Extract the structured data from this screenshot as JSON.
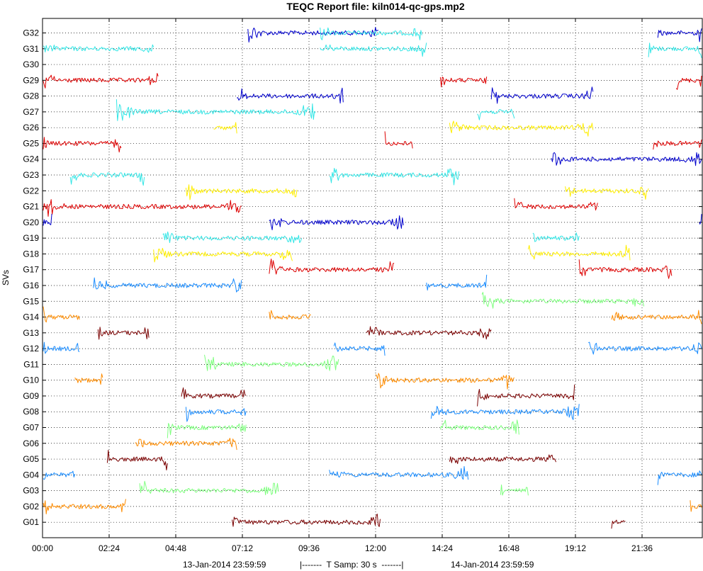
{
  "chart_data": {
    "type": "line",
    "title": "TEQC Report file: kiln014-qc-gps.mp2",
    "ylabel": "SVs",
    "xlabel": "",
    "grid": true,
    "x_ticks": [
      "00:00",
      "02:24",
      "04:48",
      "07:12",
      "09:36",
      "12:00",
      "14:24",
      "16:48",
      "19:12",
      "21:36"
    ],
    "y_ticks": [
      "G01",
      "G02",
      "G03",
      "G04",
      "G05",
      "G06",
      "G07",
      "G08",
      "G09",
      "G10",
      "G11",
      "G12",
      "G13",
      "G14",
      "G15",
      "G16",
      "G17",
      "G18",
      "G19",
      "G20",
      "G21",
      "G22",
      "G23",
      "G24",
      "G25",
      "G26",
      "G27",
      "G28",
      "G29",
      "G30",
      "G31",
      "G32"
    ],
    "xlim": [
      "00:00",
      "24:00"
    ],
    "footer": {
      "start": "13-Jan-2014 23:59:59",
      "sampling": "|-------  T Samp: 30 s  -------|",
      "end": "14-Jan-2014 23:59:59"
    },
    "series": [
      {
        "sv": "G32",
        "color": "#0000cc",
        "segments": [
          [
            "07:24",
            "12:06"
          ],
          [
            "22:10",
            "24:00"
          ]
        ]
      },
      {
        "sv": "G32",
        "color": "#33e6e6",
        "segments": [
          [
            "10:00",
            "13:40"
          ]
        ]
      },
      {
        "sv": "G31",
        "color": "#33e6e6",
        "segments": [
          [
            "00:00",
            "04:00"
          ],
          [
            "10:00",
            "13:50"
          ],
          [
            "21:50",
            "24:00"
          ]
        ]
      },
      {
        "sv": "G29",
        "color": "#dd0000",
        "segments": [
          [
            "00:00",
            "04:10"
          ],
          [
            "14:20",
            "16:00"
          ],
          [
            "22:50",
            "24:00"
          ]
        ]
      },
      {
        "sv": "G28",
        "color": "#0000cc",
        "segments": [
          [
            "07:00",
            "10:50"
          ],
          [
            "16:10",
            "19:50"
          ]
        ]
      },
      {
        "sv": "G27",
        "color": "#33e6e6",
        "segments": [
          [
            "02:40",
            "09:50"
          ],
          [
            "15:40",
            "17:00"
          ]
        ]
      },
      {
        "sv": "G26",
        "color": "#ffee00",
        "segments": [
          [
            "06:10",
            "07:00"
          ],
          [
            "14:40",
            "19:50"
          ]
        ]
      },
      {
        "sv": "G25",
        "color": "#dd0000",
        "segments": [
          [
            "00:00",
            "02:50"
          ],
          [
            "12:20",
            "13:20"
          ],
          [
            "22:00",
            "24:00"
          ]
        ]
      },
      {
        "sv": "G24",
        "color": "#0000cc",
        "segments": [
          [
            "18:20",
            "24:00"
          ]
        ]
      },
      {
        "sv": "G23",
        "color": "#33e6e6",
        "segments": [
          [
            "01:00",
            "03:40"
          ],
          [
            "10:20",
            "15:00"
          ]
        ]
      },
      {
        "sv": "G22",
        "color": "#ffee00",
        "segments": [
          [
            "05:10",
            "09:10"
          ],
          [
            "18:50",
            "21:50"
          ]
        ]
      },
      {
        "sv": "G21",
        "color": "#dd0000",
        "segments": [
          [
            "00:00",
            "07:10"
          ],
          [
            "17:00",
            "20:00"
          ]
        ]
      },
      {
        "sv": "G20",
        "color": "#0000cc",
        "segments": [
          [
            "00:00",
            "00:20"
          ],
          [
            "08:10",
            "13:00"
          ],
          [
            "23:40",
            "24:00"
          ]
        ]
      },
      {
        "sv": "G19",
        "color": "#33e6e6",
        "segments": [
          [
            "04:20",
            "09:20"
          ],
          [
            "17:40",
            "19:20"
          ]
        ]
      },
      {
        "sv": "G18",
        "color": "#ffee00",
        "segments": [
          [
            "04:00",
            "09:00"
          ],
          [
            "17:30",
            "21:10"
          ]
        ]
      },
      {
        "sv": "G17",
        "color": "#dd0000",
        "segments": [
          [
            "08:10",
            "12:40"
          ],
          [
            "19:20",
            "22:40"
          ]
        ]
      },
      {
        "sv": "G16",
        "color": "#1a8cff",
        "segments": [
          [
            "01:50",
            "07:10"
          ],
          [
            "13:50",
            "16:00"
          ]
        ]
      },
      {
        "sv": "G15",
        "color": "#7fff7f",
        "segments": [
          [
            "15:50",
            "21:40"
          ]
        ]
      },
      {
        "sv": "G14",
        "color": "#ff8c00",
        "segments": [
          [
            "00:00",
            "01:20"
          ],
          [
            "08:10",
            "09:40"
          ],
          [
            "20:30",
            "24:00"
          ]
        ]
      },
      {
        "sv": "G13",
        "color": "#7a0000",
        "segments": [
          [
            "02:00",
            "03:50"
          ],
          [
            "11:40",
            "16:10"
          ]
        ]
      },
      {
        "sv": "G12",
        "color": "#1a8cff",
        "segments": [
          [
            "00:00",
            "01:20"
          ],
          [
            "10:30",
            "12:20"
          ],
          [
            "19:40",
            "24:00"
          ]
        ]
      },
      {
        "sv": "G11",
        "color": "#7fff7f",
        "segments": [
          [
            "05:50",
            "10:40"
          ]
        ]
      },
      {
        "sv": "G10",
        "color": "#ff8c00",
        "segments": [
          [
            "01:10",
            "02:10"
          ],
          [
            "12:00",
            "17:00"
          ]
        ]
      },
      {
        "sv": "G09",
        "color": "#7a0000",
        "segments": [
          [
            "05:00",
            "07:20"
          ],
          [
            "15:40",
            "19:10"
          ]
        ]
      },
      {
        "sv": "G08",
        "color": "#1a8cff",
        "segments": [
          [
            "05:10",
            "07:20"
          ],
          [
            "14:00",
            "19:20"
          ]
        ]
      },
      {
        "sv": "G07",
        "color": "#7fff7f",
        "segments": [
          [
            "04:30",
            "07:20"
          ],
          [
            "14:20",
            "17:10"
          ]
        ]
      },
      {
        "sv": "G06",
        "color": "#ff8c00",
        "segments": [
          [
            "03:20",
            "07:00"
          ]
        ]
      },
      {
        "sv": "G05",
        "color": "#7a0000",
        "segments": [
          [
            "02:20",
            "04:30"
          ],
          [
            "14:40",
            "18:30"
          ]
        ]
      },
      {
        "sv": "G04",
        "color": "#1a8cff",
        "segments": [
          [
            "00:00",
            "01:10"
          ],
          [
            "10:20",
            "15:20"
          ],
          [
            "22:10",
            "24:00"
          ]
        ]
      },
      {
        "sv": "G03",
        "color": "#7fff7f",
        "segments": [
          [
            "03:30",
            "08:30"
          ],
          [
            "16:30",
            "17:30"
          ]
        ]
      },
      {
        "sv": "G02",
        "color": "#ff8c00",
        "segments": [
          [
            "00:00",
            "03:00"
          ],
          [
            "23:20",
            "24:00"
          ]
        ]
      },
      {
        "sv": "G01",
        "color": "#7a0000",
        "segments": [
          [
            "06:50",
            "12:10"
          ],
          [
            "20:30",
            "21:00"
          ]
        ]
      }
    ]
  }
}
